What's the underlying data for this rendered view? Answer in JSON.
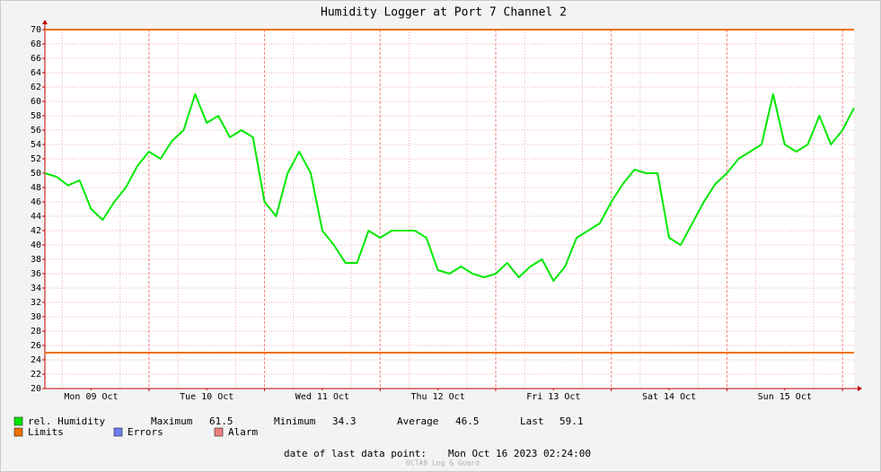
{
  "chart_data": {
    "type": "line",
    "title": "Humidity Logger at Port 7 Channel 2",
    "x": [
      9.1,
      9.2,
      9.3,
      9.4,
      9.5,
      9.6,
      9.7,
      9.8,
      9.9,
      10.0,
      10.1,
      10.2,
      10.3,
      10.4,
      10.5,
      10.6,
      10.7,
      10.8,
      10.9,
      11.0,
      11.1,
      11.2,
      11.3,
      11.4,
      11.5,
      11.6,
      11.7,
      11.8,
      11.9,
      12.0,
      12.1,
      12.2,
      12.3,
      12.4,
      12.5,
      12.6,
      12.7,
      12.8,
      12.9,
      13.0,
      13.1,
      13.2,
      13.3,
      13.4,
      13.5,
      13.6,
      13.7,
      13.8,
      13.9,
      14.0,
      14.1,
      14.2,
      14.3,
      14.4,
      14.5,
      14.6,
      14.7,
      14.8,
      14.9,
      15.0,
      15.1,
      15.2,
      15.3,
      15.4,
      15.5,
      15.6,
      15.7,
      15.8,
      15.9,
      16.0,
      16.1
    ],
    "series": [
      {
        "name": "rel. Humidity",
        "color": "#00e800",
        "values": [
          50,
          49.5,
          48.3,
          49,
          45,
          43.5,
          46,
          48,
          51,
          53,
          52,
          54.5,
          56,
          61,
          57,
          58,
          55,
          56,
          55,
          46,
          44,
          50,
          53,
          50,
          42,
          40,
          37.5,
          37.5,
          42,
          41,
          42,
          42,
          42,
          41,
          36.5,
          36,
          37,
          36,
          35.5,
          36,
          37.5,
          35.5,
          37,
          38,
          35,
          37,
          41,
          42,
          43,
          46,
          48.5,
          50.5,
          50,
          50,
          41,
          40,
          43,
          46,
          48.5,
          50,
          52,
          53,
          54,
          61,
          54,
          53,
          54,
          58,
          54,
          56,
          59.1
        ]
      }
    ],
    "limits": {
      "name": "Limits",
      "color": "#f07000",
      "values": [
        70,
        25
      ]
    },
    "legend_extra": [
      {
        "name": "Errors",
        "color": "#7080f0"
      },
      {
        "name": "Alarm",
        "color": "#f08080"
      }
    ],
    "stats": [
      {
        "label": "Maximum",
        "value": 61.5
      },
      {
        "label": "Minimum",
        "value": 34.3
      },
      {
        "label": "Average",
        "value": 46.5
      },
      {
        "label": "Last",
        "value": 59.1
      }
    ],
    "footer_label": "date of last data point:",
    "footer_value": "Mon Oct 16 2023 02:24:00",
    "watermark": "OCTA8 Log & Guard",
    "xlim": [
      9.1,
      16.1
    ],
    "xticks": [
      {
        "value": 9.5,
        "label": "Mon 09 Oct"
      },
      {
        "value": 10.5,
        "label": "Tue 10 Oct"
      },
      {
        "value": 11.5,
        "label": "Wed 11 Oct"
      },
      {
        "value": 12.5,
        "label": "Thu 12 Oct"
      },
      {
        "value": 13.5,
        "label": "Fri 13 Oct"
      },
      {
        "value": 14.5,
        "label": "Sat 14 Oct"
      },
      {
        "value": 15.5,
        "label": "Sun 15 Oct"
      }
    ],
    "ylim": [
      20,
      70
    ],
    "yticks": [
      20,
      22,
      24,
      26,
      28,
      30,
      32,
      34,
      36,
      38,
      40,
      42,
      44,
      46,
      48,
      50,
      52,
      54,
      56,
      58,
      60,
      62,
      64,
      66,
      68,
      70
    ],
    "grid": true
  }
}
